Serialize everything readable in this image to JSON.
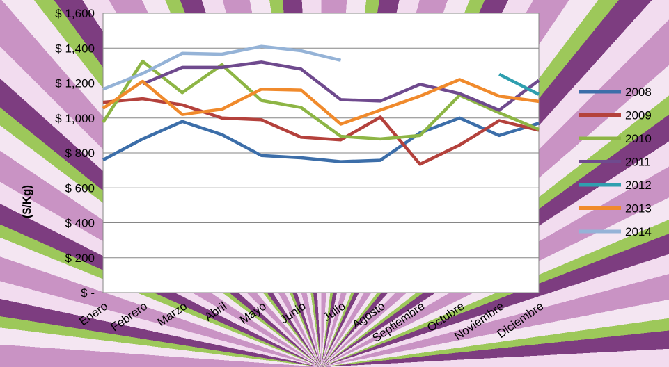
{
  "chart_data": {
    "type": "line",
    "title": "",
    "xlabel": "",
    "ylabel": "($/Kg)",
    "categories": [
      "Enero",
      "Febrero",
      "Marzo",
      "Abril",
      "Mayo",
      "Junio",
      "Julio",
      "Agosto",
      "Septiembre",
      "Octubre",
      "Noviembre",
      "Diciembre"
    ],
    "ylim": [
      0,
      1600
    ],
    "y_ticks": [
      {
        "value": 0,
        "label": "$ -"
      },
      {
        "value": 200,
        "label": "$ 200"
      },
      {
        "value": 400,
        "label": "$ 400"
      },
      {
        "value": 600,
        "label": "$ 600"
      },
      {
        "value": 800,
        "label": "$ 800"
      },
      {
        "value": 1000,
        "label": "$ 1,000"
      },
      {
        "value": 1200,
        "label": "$ 1,200"
      },
      {
        "value": 1400,
        "label": "$ 1,400"
      },
      {
        "value": 1600,
        "label": "$ 1,600"
      }
    ],
    "grid": true,
    "legend_position": "right",
    "series": [
      {
        "name": "2008",
        "color": "#3c6ea9",
        "values": [
          760,
          880,
          980,
          905,
          785,
          772,
          750,
          758,
          915,
          1000,
          900,
          970
        ]
      },
      {
        "name": "2009",
        "color": "#b4413c",
        "values": [
          1090,
          1110,
          1075,
          1000,
          990,
          890,
          875,
          1005,
          735,
          845,
          985,
          930
        ]
      },
      {
        "name": "2010",
        "color": "#8db545",
        "values": [
          975,
          1325,
          1145,
          1305,
          1100,
          1060,
          895,
          880,
          900,
          1130,
          1030,
          935
        ]
      },
      {
        "name": "2011",
        "color": "#6f4a8e",
        "values": [
          null,
          1195,
          1290,
          1290,
          1320,
          1280,
          1105,
          1097,
          1193,
          1140,
          1045,
          1215
        ]
      },
      {
        "name": "2012",
        "color": "#2f9faf",
        "values": [
          null,
          null,
          null,
          null,
          null,
          null,
          null,
          null,
          null,
          null,
          1250,
          1135
        ]
      },
      {
        "name": "2013",
        "color": "#f08a2c",
        "values": [
          1055,
          1210,
          1020,
          1050,
          1165,
          1160,
          965,
          1045,
          1125,
          1220,
          1125,
          1095
        ]
      },
      {
        "name": "2014",
        "color": "#95b3d7",
        "values": [
          1165,
          1255,
          1370,
          1365,
          1410,
          1385,
          1330,
          null,
          null,
          null,
          null,
          null
        ]
      }
    ]
  }
}
